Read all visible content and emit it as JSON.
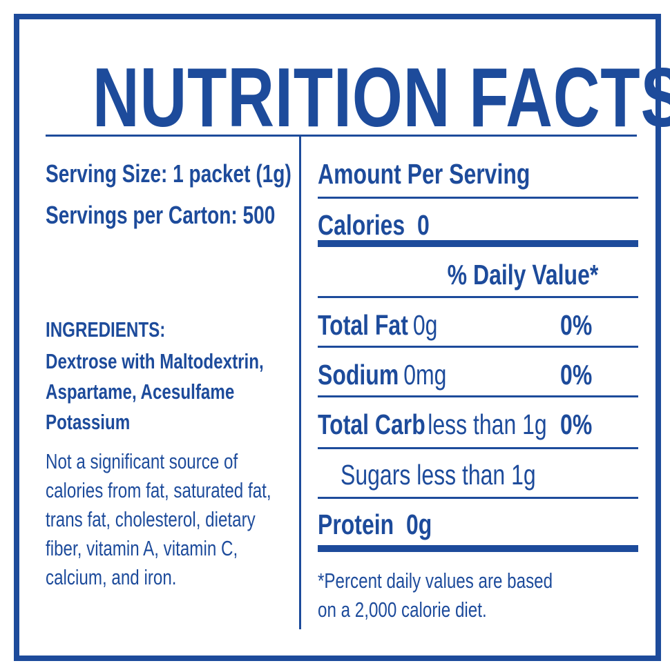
{
  "title": "NUTRITION FACTS",
  "left": {
    "serving_size": "Serving Size: 1 packet (1g)",
    "servings_per_carton": "Servings per Carton: 500",
    "ingredients_title": "INGREDIENTS:",
    "ingredients_lines": [
      "Dextrose with Maltodextrin,",
      "Aspartame, Acesulfame",
      "Potassium"
    ],
    "note_lines": [
      "Not a significant source of",
      "calories from fat, saturated fat,",
      "trans fat, cholesterol, dietary",
      "fiber, vitamin A, vitamin C,",
      "calcium, and iron."
    ]
  },
  "right": {
    "amount_per_serving": "Amount Per Serving",
    "calories_label": "Calories",
    "calories_value": "0",
    "daily_value_header": "% Daily Value*",
    "rows": [
      {
        "label": "Total Fat",
        "amount": "0g",
        "percent": "0%"
      },
      {
        "label": "Sodium",
        "amount": "0mg",
        "percent": "0%"
      },
      {
        "label": "Total Carb",
        "amount": "less than 1g",
        "percent": "0%"
      }
    ],
    "sugars": "Sugars less than 1g",
    "protein_label": "Protein",
    "protein_value": "0g",
    "footnote_lines": [
      "*Percent daily values are based",
      "on a 2,000 calorie diet."
    ]
  },
  "colors": {
    "brand_blue": "#1d4b9b",
    "background": "#ffffff"
  }
}
